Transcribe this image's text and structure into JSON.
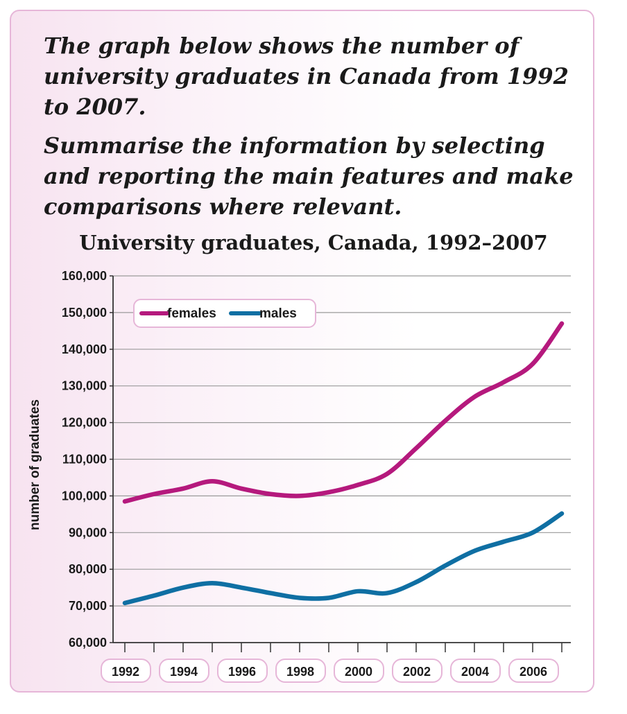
{
  "prompt": {
    "line1": "The graph below shows the number of university graduates in Canada from 1992 to 2007.",
    "line2": "Summarise the information by selecting and reporting the main features and make comparisons where relevant."
  },
  "colors": {
    "females": "#b5197d",
    "males": "#0f6fa3",
    "grid": "#9a9a9a",
    "frame": "#e6b6d8"
  },
  "chart_data": {
    "type": "line",
    "title": "University graduates, Canada, 1992–2007",
    "ylabel": "number of graduates",
    "xlabel": "",
    "ylim": [
      60000,
      160000
    ],
    "yticks": [
      60000,
      70000,
      80000,
      90000,
      100000,
      110000,
      120000,
      130000,
      140000,
      150000,
      160000
    ],
    "ytick_labels": [
      "60,000",
      "70,000",
      "80,000",
      "90,000",
      "100,000",
      "110,000",
      "120,000",
      "130,000",
      "140,000",
      "150,000",
      "160,000"
    ],
    "xlim": [
      1992,
      2007.5
    ],
    "xtick_labels": [
      "1992",
      "1994",
      "1996",
      "1998",
      "2000",
      "2002",
      "2004",
      "2006"
    ],
    "grid": true,
    "legend_position": "top-left",
    "x": [
      1992,
      1993,
      1994,
      1995,
      1996,
      1997,
      1998,
      1999,
      2000,
      2001,
      2002,
      2003,
      2004,
      2005,
      2006,
      2007
    ],
    "series": [
      {
        "name": "females",
        "values": [
          98500,
          100500,
          102000,
          104000,
          102000,
          100500,
          100000,
          101000,
          103000,
          106000,
          113000,
          120500,
          127000,
          131000,
          136000,
          147000
        ]
      },
      {
        "name": "males",
        "values": [
          70800,
          72800,
          75000,
          76200,
          75000,
          73500,
          72200,
          72200,
          74000,
          73500,
          76500,
          81000,
          85000,
          87500,
          90000,
          95200
        ]
      }
    ]
  }
}
